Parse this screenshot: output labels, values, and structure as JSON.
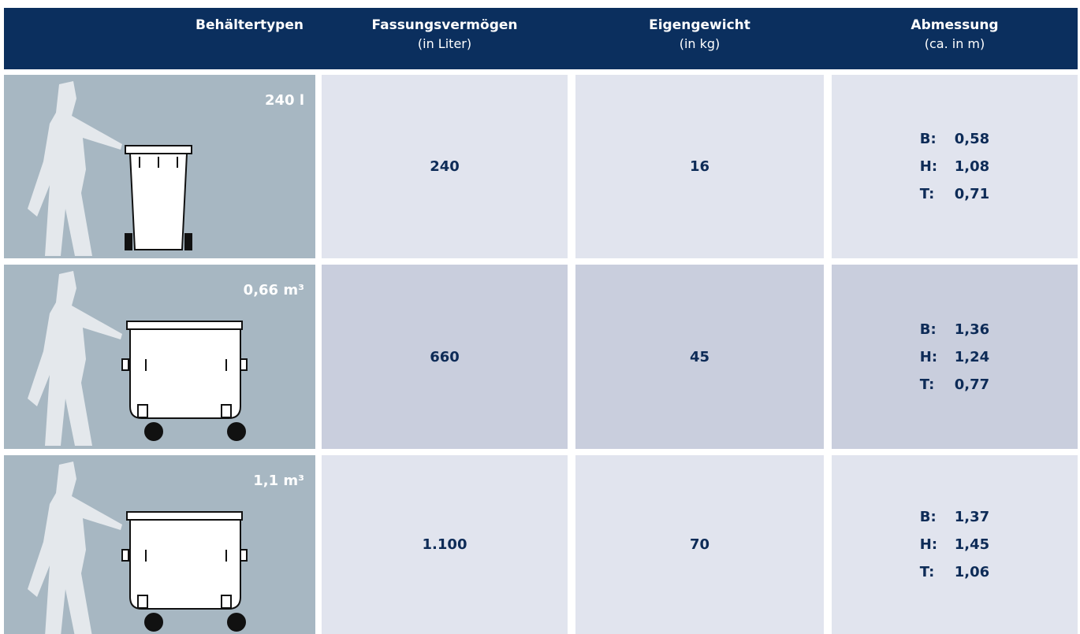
{
  "table": {
    "header": [
      {
        "title": "Behältertypen"
      },
      {
        "title": "Fassungsvermögen",
        "subtitle": "(in Liter)"
      },
      {
        "title": "Eigengewicht",
        "subtitle": "(in kg)"
      },
      {
        "title": "Abmessung",
        "subtitle": "(ca. in m)"
      }
    ],
    "rows": [
      {
        "label": "240 l",
        "capacity": "240",
        "weight": "16",
        "dimensions": [
          {
            "key": "B:",
            "value": "0,58"
          },
          {
            "key": "H:",
            "value": "1,08"
          },
          {
            "key": "T:",
            "value": "0,71"
          }
        ]
      },
      {
        "label": "0,66 m³",
        "capacity": "660",
        "weight": "45",
        "dimensions": [
          {
            "key": "B:",
            "value": "1,36"
          },
          {
            "key": "H:",
            "value": "1,24"
          },
          {
            "key": "T:",
            "value": "0,77"
          }
        ]
      },
      {
        "label": "1,1 m³",
        "capacity": "1.100",
        "weight": "70",
        "dimensions": [
          {
            "key": "B:",
            "value": "1,37"
          },
          {
            "key": "H:",
            "value": "1,45"
          },
          {
            "key": "T:",
            "value": "1,06"
          }
        ]
      }
    ]
  }
}
